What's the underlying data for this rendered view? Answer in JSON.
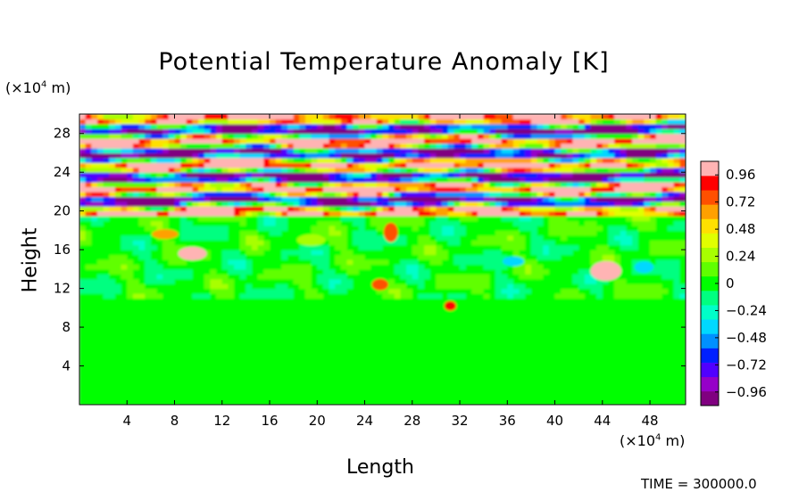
{
  "chart_data": {
    "type": "heatmap",
    "title": "Potential Temperature Anomaly [K]",
    "xlabel": "Length",
    "ylabel": "Height",
    "x_unit_prefix": "(×10",
    "x_unit_exp": "4",
    "x_unit_suffix": " m)",
    "y_unit_prefix": "(×10",
    "y_unit_exp": "4",
    "y_unit_suffix": " m)",
    "xlim": [
      0,
      51
    ],
    "ylim": [
      0,
      30
    ],
    "x_ticks": [
      "4",
      "8",
      "12",
      "16",
      "20",
      "24",
      "28",
      "32",
      "36",
      "40",
      "44",
      "48"
    ],
    "y_ticks": [
      "4",
      "8",
      "12",
      "16",
      "20",
      "24",
      "28"
    ],
    "colorbar": {
      "range": [
        -1.08,
        1.08
      ],
      "labels": [
        "0.96",
        "0.72",
        "0.48",
        "0.24",
        "0",
        "−0.24",
        "−0.48",
        "−0.72",
        "−0.96"
      ],
      "colors": [
        "#800080",
        "#9600c8",
        "#5000ff",
        "#0020ff",
        "#0090ff",
        "#00d8ff",
        "#00ffc8",
        "#00ff80",
        "#00ff00",
        "#60ff00",
        "#a8ff00",
        "#e0ff00",
        "#ffe000",
        "#ffa000",
        "#ff5000",
        "#ff0000",
        "#ffb4b4"
      ]
    },
    "footer_text": "TIME = 300000.0"
  }
}
